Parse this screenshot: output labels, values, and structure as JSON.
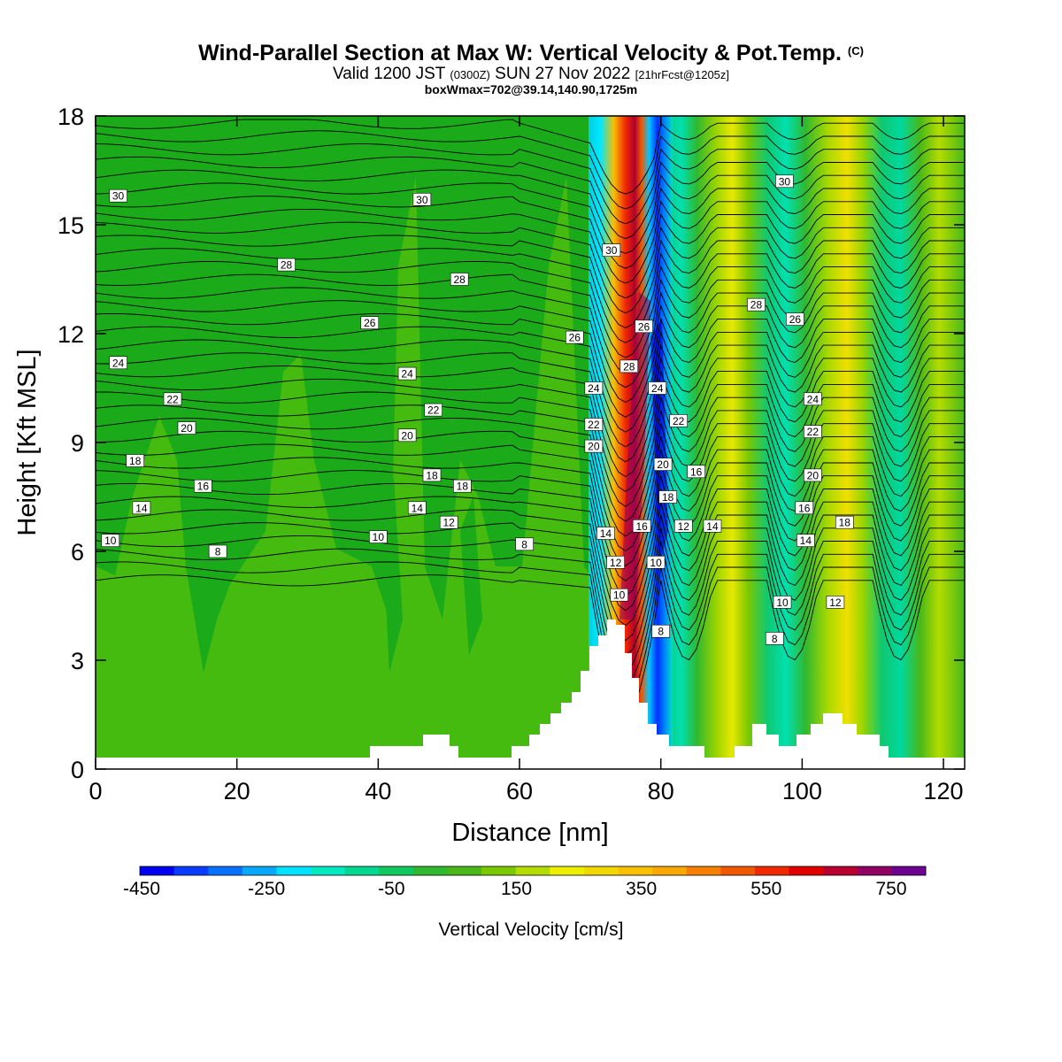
{
  "title": {
    "main": "Wind-Parallel Section at Max W: Vertical Velocity & Pot.Temp.",
    "copyright": "(C)",
    "valid_prefix": "Valid 1200 JST",
    "utc": "(0300Z)",
    "valid_date": "SUN 27 Nov 2022",
    "forecast": "[21hrFcst@1205z]",
    "boxline": "boxWmax=702@39.14,140.90,1725m"
  },
  "chart_data": {
    "type": "heatmap",
    "xlabel": "Distance [nm]",
    "ylabel": "Height [Kft MSL]",
    "xlim": [
      0,
      123
    ],
    "ylim": [
      0,
      18
    ],
    "x_ticks": [
      "0",
      "20",
      "40",
      "60",
      "80",
      "100",
      "120"
    ],
    "y_ticks": [
      "0",
      "3",
      "6",
      "9",
      "12",
      "15",
      "18"
    ],
    "colorbar": {
      "title": "Vertical Velocity [cm/s]",
      "labels": [
        "-450",
        "-250",
        "-50",
        "150",
        "350",
        "550",
        "750"
      ],
      "colors": [
        "#0000f0",
        "#0a3cff",
        "#0a70ff",
        "#08a8ff",
        "#00e0ff",
        "#00e8c0",
        "#00d890",
        "#10c860",
        "#30b830",
        "#48b818",
        "#7cc800",
        "#b4dc00",
        "#ecf000",
        "#f0d800",
        "#f8c000",
        "#f8a800",
        "#f88000",
        "#f05800",
        "#f02800",
        "#e00000",
        "#b80030",
        "#900060",
        "#6c0090"
      ]
    },
    "contour_labels": [
      {
        "x": 3.2,
        "y": 15.8,
        "text": "30"
      },
      {
        "x": 46.2,
        "y": 15.7,
        "text": "30"
      },
      {
        "x": 97.5,
        "y": 16.2,
        "text": "30"
      },
      {
        "x": 73,
        "y": 14.3,
        "text": "30"
      },
      {
        "x": 27,
        "y": 13.9,
        "text": "28"
      },
      {
        "x": 51.5,
        "y": 13.5,
        "text": "28"
      },
      {
        "x": 93.5,
        "y": 12.8,
        "text": "28"
      },
      {
        "x": 75.5,
        "y": 11.1,
        "text": "28"
      },
      {
        "x": 38.8,
        "y": 12.3,
        "text": "26"
      },
      {
        "x": 67.8,
        "y": 11.9,
        "text": "26"
      },
      {
        "x": 77.6,
        "y": 12.2,
        "text": "26"
      },
      {
        "x": 99,
        "y": 12.4,
        "text": "26"
      },
      {
        "x": 3.2,
        "y": 11.2,
        "text": "24"
      },
      {
        "x": 44.1,
        "y": 10.9,
        "text": "24"
      },
      {
        "x": 70.5,
        "y": 10.5,
        "text": "24"
      },
      {
        "x": 79.5,
        "y": 10.5,
        "text": "24"
      },
      {
        "x": 101.5,
        "y": 10.2,
        "text": "24"
      },
      {
        "x": 10.9,
        "y": 10.2,
        "text": "22"
      },
      {
        "x": 47.8,
        "y": 9.9,
        "text": "22"
      },
      {
        "x": 70.5,
        "y": 9.5,
        "text": "22"
      },
      {
        "x": 82.5,
        "y": 9.6,
        "text": "22"
      },
      {
        "x": 101.5,
        "y": 9.3,
        "text": "22"
      },
      {
        "x": 12.9,
        "y": 9.4,
        "text": "20"
      },
      {
        "x": 44.1,
        "y": 9.2,
        "text": "20"
      },
      {
        "x": 70.5,
        "y": 8.9,
        "text": "20"
      },
      {
        "x": 80.3,
        "y": 8.4,
        "text": "20"
      },
      {
        "x": 101.5,
        "y": 8.1,
        "text": "20"
      },
      {
        "x": 5.6,
        "y": 8.5,
        "text": "18"
      },
      {
        "x": 47.6,
        "y": 8.1,
        "text": "18"
      },
      {
        "x": 51.9,
        "y": 7.8,
        "text": "18"
      },
      {
        "x": 81,
        "y": 7.5,
        "text": "18"
      },
      {
        "x": 106,
        "y": 6.8,
        "text": "18"
      },
      {
        "x": 15.2,
        "y": 7.8,
        "text": "16"
      },
      {
        "x": 85,
        "y": 8.2,
        "text": "16"
      },
      {
        "x": 77.3,
        "y": 6.7,
        "text": "16"
      },
      {
        "x": 100.3,
        "y": 7.2,
        "text": "16"
      },
      {
        "x": 6.5,
        "y": 7.2,
        "text": "14"
      },
      {
        "x": 45.5,
        "y": 7.2,
        "text": "14"
      },
      {
        "x": 72.2,
        "y": 6.5,
        "text": "14"
      },
      {
        "x": 87.3,
        "y": 6.7,
        "text": "14"
      },
      {
        "x": 100.5,
        "y": 6.3,
        "text": "14"
      },
      {
        "x": 50,
        "y": 6.8,
        "text": "12"
      },
      {
        "x": 73.6,
        "y": 5.7,
        "text": "12"
      },
      {
        "x": 83.2,
        "y": 6.7,
        "text": "12"
      },
      {
        "x": 104.7,
        "y": 4.6,
        "text": "12"
      },
      {
        "x": 2.1,
        "y": 6.3,
        "text": "10"
      },
      {
        "x": 40,
        "y": 6.4,
        "text": "10"
      },
      {
        "x": 74.1,
        "y": 4.8,
        "text": "10"
      },
      {
        "x": 79.3,
        "y": 5.7,
        "text": "10"
      },
      {
        "x": 97.2,
        "y": 4.6,
        "text": "10"
      },
      {
        "x": 17.3,
        "y": 6.0,
        "text": "8"
      },
      {
        "x": 60.7,
        "y": 6.2,
        "text": "8"
      },
      {
        "x": 80,
        "y": 3.8,
        "text": "8"
      },
      {
        "x": 96.1,
        "y": 3.6,
        "text": "8"
      }
    ]
  }
}
